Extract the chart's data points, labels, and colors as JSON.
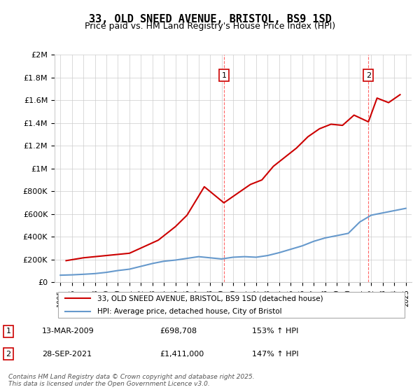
{
  "title": "33, OLD SNEED AVENUE, BRISTOL, BS9 1SD",
  "subtitle": "Price paid vs. HM Land Registry's House Price Index (HPI)",
  "legend_line1": "33, OLD SNEED AVENUE, BRISTOL, BS9 1SD (detached house)",
  "legend_line2": "HPI: Average price, detached house, City of Bristol",
  "annotation1_label": "1",
  "annotation1_date": "13-MAR-2009",
  "annotation1_price": "£698,708",
  "annotation1_hpi": "153% ↑ HPI",
  "annotation1_year": 2009.2,
  "annotation1_value": 698708,
  "annotation2_label": "2",
  "annotation2_date": "28-SEP-2021",
  "annotation2_price": "£1,411,000",
  "annotation2_hpi": "147% ↑ HPI",
  "annotation2_year": 2021.75,
  "annotation2_value": 1411000,
  "footer": "Contains HM Land Registry data © Crown copyright and database right 2025.\nThis data is licensed under the Open Government Licence v3.0.",
  "red_color": "#cc0000",
  "blue_color": "#6699cc",
  "dashed_color": "#ff6666",
  "ylim": [
    0,
    2000000
  ],
  "yticks": [
    0,
    200000,
    400000,
    600000,
    800000,
    1000000,
    1200000,
    1400000,
    1600000,
    1800000,
    2000000
  ],
  "ytick_labels": [
    "£0",
    "£200K",
    "£400K",
    "£600K",
    "£800K",
    "£1M",
    "£1.2M",
    "£1.4M",
    "£1.6M",
    "£1.8M",
    "£2M"
  ],
  "hpi_years": [
    1995,
    1996,
    1997,
    1998,
    1999,
    2000,
    2001,
    2002,
    2003,
    2004,
    2005,
    2006,
    2007,
    2008,
    2009,
    2010,
    2011,
    2012,
    2013,
    2014,
    2015,
    2016,
    2017,
    2018,
    2019,
    2020,
    2021,
    2022,
    2023,
    2024,
    2025
  ],
  "hpi_values": [
    62000,
    65000,
    70000,
    76000,
    87000,
    103000,
    115000,
    140000,
    165000,
    185000,
    195000,
    210000,
    225000,
    215000,
    205000,
    220000,
    225000,
    220000,
    235000,
    260000,
    290000,
    320000,
    360000,
    390000,
    410000,
    430000,
    530000,
    590000,
    610000,
    630000,
    650000
  ],
  "red_years": [
    1995.5,
    1997.0,
    1999.0,
    2001.0,
    2003.5,
    2005.0,
    2006.0,
    2007.5,
    2009.2,
    2010.5,
    2011.5,
    2012.5,
    2013.5,
    2014.5,
    2015.5,
    2016.5,
    2017.5,
    2018.5,
    2019.5,
    2020.5,
    2021.75,
    2022.5,
    2023.5,
    2024.5
  ],
  "red_values": [
    190000,
    215000,
    235000,
    255000,
    370000,
    490000,
    590000,
    840000,
    698708,
    790000,
    860000,
    900000,
    1020000,
    1100000,
    1180000,
    1280000,
    1350000,
    1390000,
    1380000,
    1470000,
    1411000,
    1620000,
    1580000,
    1650000
  ]
}
